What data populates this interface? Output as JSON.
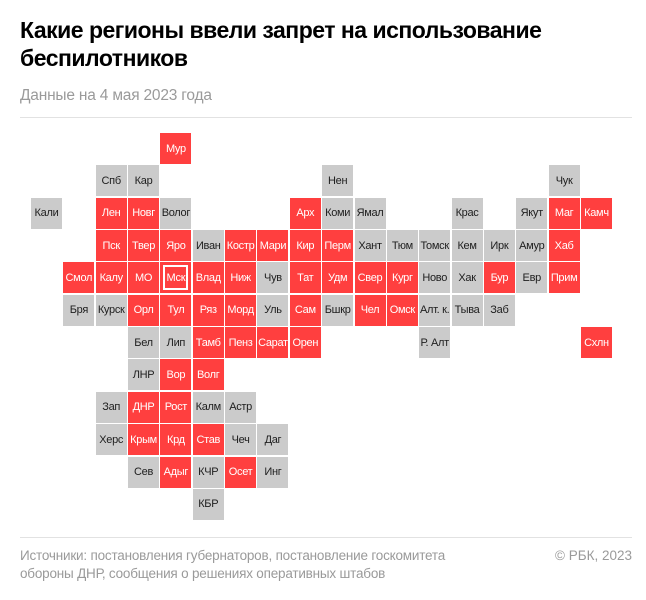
{
  "header": {
    "title": "Какие регионы ввели запрет на использование беспилотников",
    "subtitle": "Данные на 4 мая 2023 года"
  },
  "colors": {
    "ban": "#ff3f3f",
    "no_ban": "#cbcbcb"
  },
  "map": {
    "rows": [
      [
        null,
        null,
        null,
        null,
        {
          "n": "Мур",
          "ban": true
        }
      ],
      [
        null,
        null,
        {
          "n": "Спб",
          "ban": false
        },
        {
          "n": "Кар",
          "ban": false
        },
        null,
        null,
        null,
        null,
        null,
        {
          "n": "Нен",
          "ban": false
        },
        null,
        null,
        null,
        null,
        null,
        null,
        {
          "n": "Чук",
          "ban": false
        }
      ],
      [
        {
          "n": "Кали",
          "ban": false
        },
        null,
        {
          "n": "Лен",
          "ban": true
        },
        {
          "n": "Новг",
          "ban": true
        },
        {
          "n": "Волог",
          "ban": false
        },
        null,
        null,
        null,
        {
          "n": "Арх",
          "ban": true
        },
        {
          "n": "Коми",
          "ban": false
        },
        {
          "n": "Ямал",
          "ban": false
        },
        null,
        null,
        {
          "n": "Крас",
          "ban": false
        },
        null,
        {
          "n": "Якут",
          "ban": false
        },
        {
          "n": "Маг",
          "ban": true
        },
        {
          "n": "Камч",
          "ban": true
        }
      ],
      [
        null,
        null,
        {
          "n": "Пск",
          "ban": true
        },
        {
          "n": "Твер",
          "ban": true
        },
        {
          "n": "Яро",
          "ban": true
        },
        {
          "n": "Иван",
          "ban": false
        },
        {
          "n": "Костр",
          "ban": true
        },
        {
          "n": "Мари",
          "ban": true
        },
        {
          "n": "Кир",
          "ban": true
        },
        {
          "n": "Перм",
          "ban": true
        },
        {
          "n": "Хант",
          "ban": false
        },
        {
          "n": "Тюм",
          "ban": false
        },
        {
          "n": "Томск",
          "ban": false
        },
        {
          "n": "Кем",
          "ban": false
        },
        {
          "n": "Ирк",
          "ban": false
        },
        {
          "n": "Амур",
          "ban": false
        },
        {
          "n": "Хаб",
          "ban": true
        }
      ],
      [
        null,
        {
          "n": "Смол",
          "ban": true
        },
        {
          "n": "Калу",
          "ban": true
        },
        {
          "n": "МО",
          "ban": true
        },
        {
          "n": "Мск",
          "ban": true,
          "capital": true
        },
        {
          "n": "Влад",
          "ban": true
        },
        {
          "n": "Ниж",
          "ban": true
        },
        {
          "n": "Чув",
          "ban": false
        },
        {
          "n": "Тат",
          "ban": true
        },
        {
          "n": "Удм",
          "ban": true
        },
        {
          "n": "Свер",
          "ban": true
        },
        {
          "n": "Кург",
          "ban": true
        },
        {
          "n": "Ново",
          "ban": false
        },
        {
          "n": "Хак",
          "ban": false
        },
        {
          "n": "Бур",
          "ban": true
        },
        {
          "n": "Евр",
          "ban": false
        },
        {
          "n": "Прим",
          "ban": true
        }
      ],
      [
        null,
        {
          "n": "Бря",
          "ban": false
        },
        {
          "n": "Курск",
          "ban": false
        },
        {
          "n": "Орл",
          "ban": true
        },
        {
          "n": "Тул",
          "ban": true
        },
        {
          "n": "Ряз",
          "ban": true
        },
        {
          "n": "Морд",
          "ban": true
        },
        {
          "n": "Уль",
          "ban": false
        },
        {
          "n": "Сам",
          "ban": true
        },
        {
          "n": "Бшкр",
          "ban": false
        },
        {
          "n": "Чел",
          "ban": true
        },
        {
          "n": "Омск",
          "ban": true
        },
        {
          "n": "Алт. к.",
          "ban": false
        },
        {
          "n": "Тыва",
          "ban": false
        },
        {
          "n": "Заб",
          "ban": false
        }
      ],
      [
        null,
        null,
        null,
        {
          "n": "Бел",
          "ban": false
        },
        {
          "n": "Лип",
          "ban": false
        },
        {
          "n": "Тамб",
          "ban": true
        },
        {
          "n": "Пенз",
          "ban": true
        },
        {
          "n": "Сарат",
          "ban": true
        },
        {
          "n": "Орен",
          "ban": true
        },
        null,
        null,
        null,
        {
          "n": "Р. Алт",
          "ban": false
        },
        null,
        null,
        null,
        null,
        {
          "n": "Схлн",
          "ban": true
        }
      ],
      [
        null,
        null,
        null,
        {
          "n": "ЛНР",
          "ban": false
        },
        {
          "n": "Вор",
          "ban": true
        },
        {
          "n": "Волг",
          "ban": true
        }
      ],
      [
        null,
        null,
        {
          "n": "Зап",
          "ban": false
        },
        {
          "n": "ДНР",
          "ban": true
        },
        {
          "n": "Рост",
          "ban": true
        },
        {
          "n": "Калм",
          "ban": false
        },
        {
          "n": "Астр",
          "ban": false
        }
      ],
      [
        null,
        null,
        {
          "n": "Херс",
          "ban": false
        },
        {
          "n": "Крым",
          "ban": true
        },
        {
          "n": "Крд",
          "ban": true
        },
        {
          "n": "Став",
          "ban": true
        },
        {
          "n": "Чеч",
          "ban": false
        },
        {
          "n": "Даг",
          "ban": false
        }
      ],
      [
        null,
        null,
        null,
        {
          "n": "Сев",
          "ban": false
        },
        {
          "n": "Адыг",
          "ban": true
        },
        {
          "n": "КЧР",
          "ban": false
        },
        {
          "n": "Осет",
          "ban": true
        },
        {
          "n": "Инг",
          "ban": false
        }
      ],
      [
        null,
        null,
        null,
        null,
        null,
        {
          "n": "КБР",
          "ban": false
        }
      ]
    ]
  },
  "footer": {
    "sources": "Источники: постановления губернаторов, постановление госкомитета обороны ДНР, сообщения о решениях оперативных штабов",
    "copyright": "© РБК, 2023"
  }
}
